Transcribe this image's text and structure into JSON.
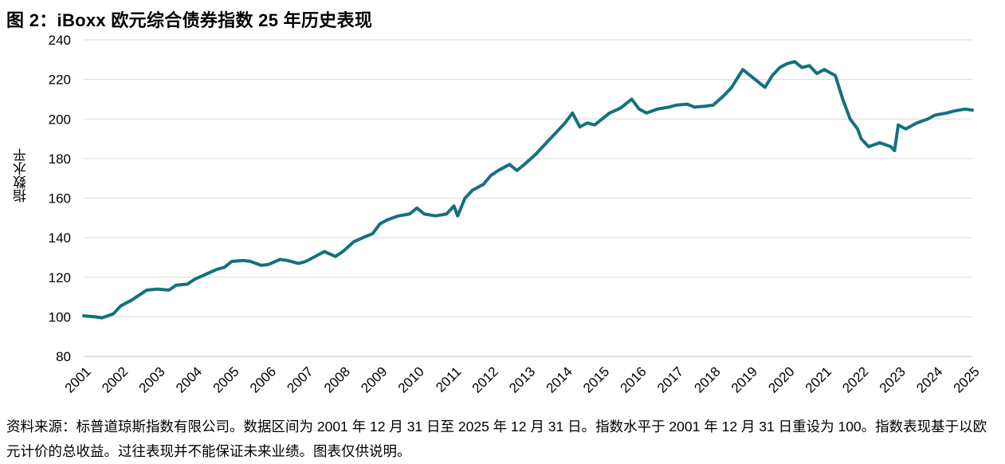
{
  "page": {
    "title": "图 2：iBoxx 欧元综合债券指数 25 年历史表现",
    "source_note": "资料来源：标普道琼斯指数有限公司。数据区间为 2001 年 12 月 31 日至 2025 年 12 月 31 日。指数水平于 2001 年 12 月 31 日重设为 100。指数表现基于以欧元计价的总收益。过往表现并不能保证未来业绩。图表仅供说明。"
  },
  "colors": {
    "line": "#147180",
    "grid": "#d9d9d9",
    "text": "#000000"
  },
  "chart_data": {
    "type": "line",
    "title": "图 2：iBoxx 欧元综合债券指数 25 年历史表现",
    "xlabel": "",
    "ylabel": "指数水平",
    "ylim": [
      80,
      240
    ],
    "yticks": [
      80,
      100,
      120,
      140,
      160,
      180,
      200,
      220,
      240
    ],
    "xlim": [
      2001,
      2025
    ],
    "xticks": [
      "2001",
      "2002",
      "2003",
      "2004",
      "2005",
      "2006",
      "2007",
      "2008",
      "2009",
      "2010",
      "2011",
      "2012",
      "2013",
      "2014",
      "2015",
      "2016",
      "2017",
      "2018",
      "2019",
      "2020",
      "2021",
      "2022",
      "2023",
      "2024",
      "2025"
    ],
    "grid": "horizontal",
    "legend": "none",
    "series": [
      {
        "name": "",
        "x": [
          2001.0,
          2001.3,
          2001.5,
          2001.8,
          2002.0,
          2002.3,
          2002.5,
          2002.7,
          2003.0,
          2003.3,
          2003.5,
          2003.8,
          2004.0,
          2004.3,
          2004.6,
          2004.8,
          2005.0,
          2005.3,
          2005.5,
          2005.8,
          2006.0,
          2006.3,
          2006.5,
          2006.8,
          2007.0,
          2007.3,
          2007.5,
          2007.8,
          2008.0,
          2008.3,
          2008.6,
          2008.8,
          2009.0,
          2009.2,
          2009.5,
          2009.8,
          2010.0,
          2010.2,
          2010.5,
          2010.8,
          2011.0,
          2011.1,
          2011.3,
          2011.5,
          2011.8,
          2012.0,
          2012.2,
          2012.5,
          2012.7,
          2012.9,
          2013.2,
          2013.5,
          2013.8,
          2014.0,
          2014.2,
          2014.4,
          2014.6,
          2014.8,
          2015.0,
          2015.2,
          2015.5,
          2015.8,
          2016.0,
          2016.2,
          2016.5,
          2016.8,
          2017.0,
          2017.3,
          2017.5,
          2017.8,
          2018.0,
          2018.3,
          2018.5,
          2018.8,
          2019.0,
          2019.2,
          2019.4,
          2019.6,
          2019.8,
          2020.0,
          2020.2,
          2020.4,
          2020.6,
          2020.8,
          2021.0,
          2021.3,
          2021.5,
          2021.7,
          2021.9,
          2022.0,
          2022.2,
          2022.5,
          2022.8,
          2022.9,
          2023.0,
          2023.2,
          2023.5,
          2023.8,
          2024.0,
          2024.3,
          2024.5,
          2024.8,
          2025.0
        ],
        "y": [
          100.5,
          100.0,
          99.5,
          101.5,
          105.5,
          108.5,
          111.0,
          113.5,
          114.0,
          113.5,
          116.0,
          116.5,
          119.0,
          121.5,
          124.0,
          125.0,
          128.0,
          128.5,
          128.0,
          126.0,
          126.5,
          129.0,
          128.5,
          127.0,
          128.0,
          131.0,
          133.0,
          130.5,
          133.0,
          138.0,
          140.5,
          142.0,
          147.0,
          149.0,
          151.0,
          152.0,
          155.0,
          152.0,
          151.0,
          152.0,
          156.0,
          151.0,
          160.0,
          164.0,
          167.0,
          171.5,
          174.0,
          177.0,
          174.0,
          177.0,
          182.0,
          188.0,
          194.0,
          198.0,
          203.0,
          196.0,
          198.0,
          197.0,
          200.0,
          203.0,
          205.5,
          210.0,
          205.0,
          203.0,
          205.0,
          206.0,
          207.0,
          207.5,
          206.0,
          206.5,
          207.0,
          212.0,
          216.0,
          225.0,
          222.0,
          219.0,
          216.0,
          222.0,
          226.0,
          228.0,
          229.0,
          226.0,
          227.0,
          223.0,
          225.0,
          222.0,
          210.0,
          200.0,
          195.0,
          190.0,
          186.0,
          188.0,
          186.0,
          184.0,
          197.0,
          195.0,
          198.0,
          200.0,
          202.0,
          203.0,
          204.0,
          205.0,
          204.5
        ]
      }
    ]
  }
}
